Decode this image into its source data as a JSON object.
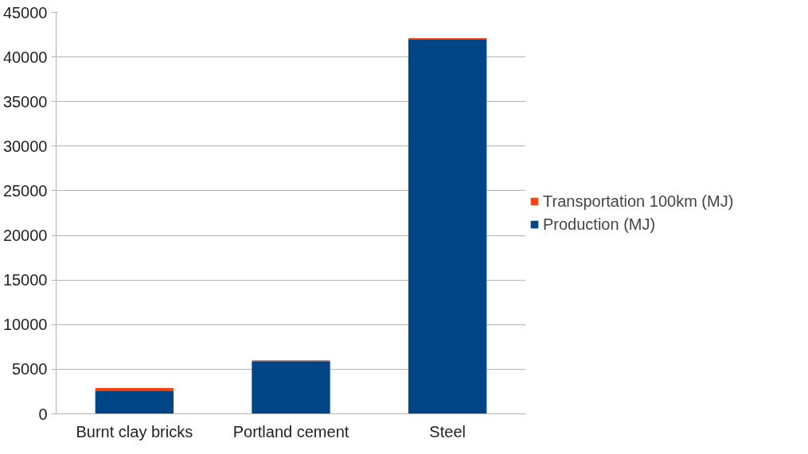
{
  "chart_data": {
    "type": "bar",
    "stacked": true,
    "categories": [
      "Burnt clay bricks",
      "Portland cement",
      "Steel"
    ],
    "series": [
      {
        "name": "Production (MJ)",
        "color": "#004586",
        "values": [
          2600,
          5900,
          42000
        ]
      },
      {
        "name": "Transportation 100km (MJ)",
        "color": "#ff420e",
        "values": [
          300,
          100,
          100
        ]
      }
    ],
    "ylim": [
      0,
      45000
    ],
    "yticks": [
      0,
      5000,
      10000,
      15000,
      20000,
      25000,
      30000,
      35000,
      40000,
      45000
    ],
    "grid": "y",
    "legend": "right"
  }
}
